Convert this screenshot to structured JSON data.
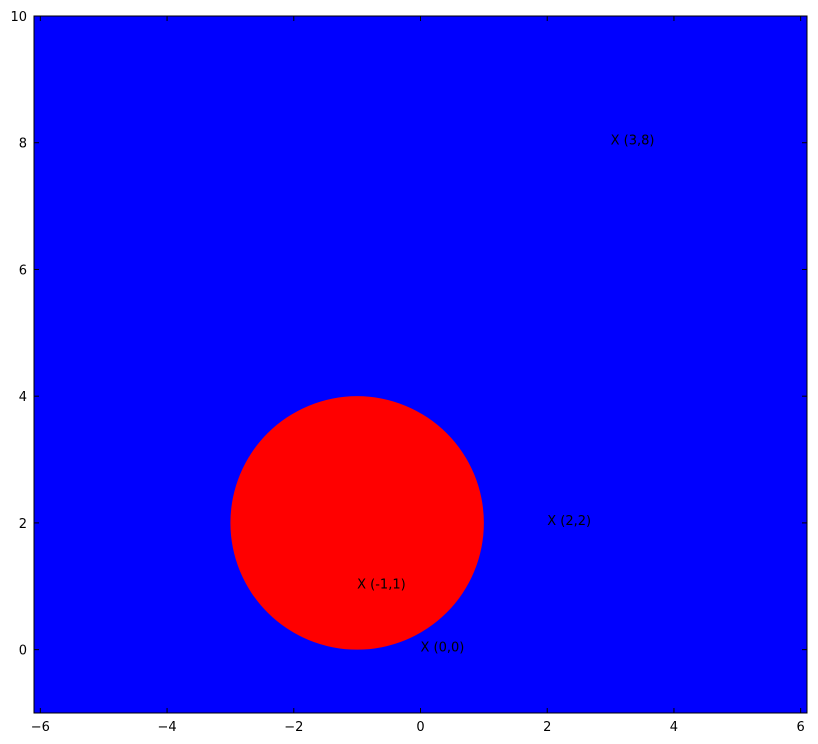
{
  "chart_data": {
    "type": "scatter",
    "title": "",
    "xlabel": "",
    "ylabel": "",
    "xlim": [
      -6.1,
      6.1
    ],
    "ylim": [
      -1,
      10
    ],
    "grid": false,
    "x_ticks": [
      -6,
      -4,
      -2,
      0,
      2,
      4,
      6
    ],
    "y_ticks": [
      0,
      2,
      4,
      6,
      8,
      10
    ],
    "x_tick_labels": [
      "−6",
      "−4",
      "−2",
      "0",
      "2",
      "4",
      "6"
    ],
    "y_tick_labels": [
      "0",
      "2",
      "4",
      "6",
      "8",
      "10"
    ],
    "background_color": "#0000ff",
    "circle": {
      "center": [
        -1,
        2
      ],
      "radius": 2,
      "color": "#ff0000"
    },
    "points": [
      {
        "x": 3,
        "y": 8,
        "label": "X (3,8)"
      },
      {
        "x": 2,
        "y": 2,
        "label": "X (2,2)"
      },
      {
        "x": -1,
        "y": 1,
        "label": "X (-1,1)"
      },
      {
        "x": 0,
        "y": 0,
        "label": "X (0,0)"
      }
    ]
  }
}
